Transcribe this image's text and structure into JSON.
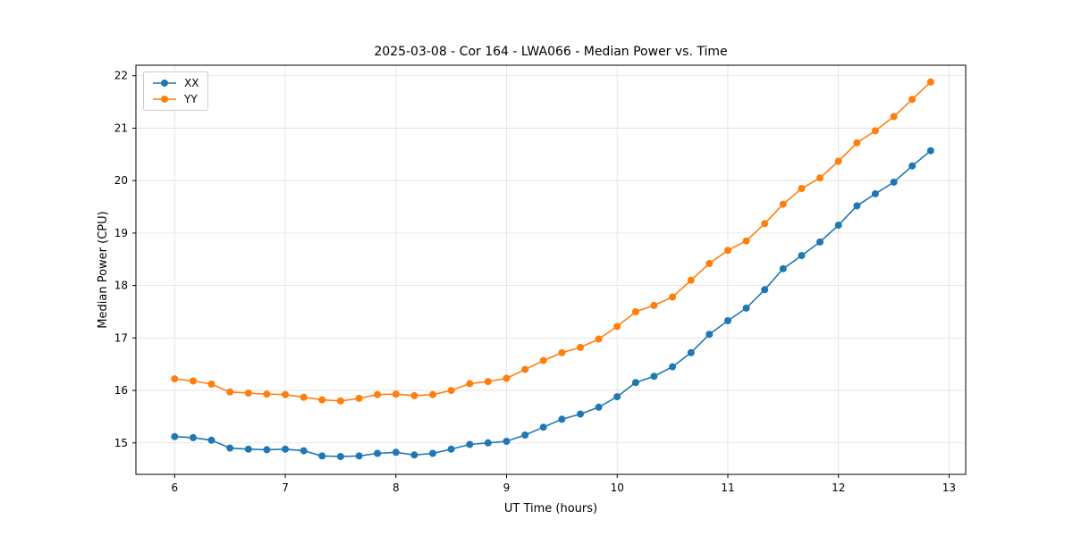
{
  "chart_data": {
    "type": "line",
    "title": "2025-03-08 - Cor 164 - LWA066 - Median Power vs. Time",
    "xlabel": "UT Time (hours)",
    "ylabel": "Median Power (CPU)",
    "xlim": [
      5.65,
      13.15
    ],
    "ylim": [
      14.4,
      22.2
    ],
    "xticks": [
      6,
      7,
      8,
      9,
      10,
      11,
      12,
      13
    ],
    "yticks": [
      15,
      16,
      17,
      18,
      19,
      20,
      21,
      22
    ],
    "grid": true,
    "legend_position": "upper-left",
    "marker": "circle",
    "x": [
      6.0,
      6.167,
      6.333,
      6.5,
      6.667,
      6.833,
      7.0,
      7.167,
      7.333,
      7.5,
      7.667,
      7.833,
      8.0,
      8.167,
      8.333,
      8.5,
      8.667,
      8.833,
      9.0,
      9.167,
      9.333,
      9.5,
      9.667,
      9.833,
      10.0,
      10.167,
      10.333,
      10.5,
      10.667,
      10.833,
      11.0,
      11.167,
      11.333,
      11.5,
      11.667,
      11.833,
      12.0,
      12.167,
      12.333,
      12.5,
      12.667,
      12.833
    ],
    "series": [
      {
        "name": "XX",
        "color": "#1f77b4",
        "values": [
          15.12,
          15.1,
          15.05,
          14.9,
          14.88,
          14.87,
          14.88,
          14.85,
          14.75,
          14.74,
          14.75,
          14.8,
          14.82,
          14.77,
          14.8,
          14.88,
          14.97,
          15.0,
          15.03,
          15.15,
          15.3,
          15.45,
          15.55,
          15.68,
          15.88,
          16.15,
          16.27,
          16.45,
          16.72,
          17.07,
          17.33,
          17.57,
          17.92,
          18.32,
          18.57,
          18.83,
          19.15,
          19.52,
          19.75,
          19.97,
          20.28,
          20.57
        ]
      },
      {
        "name": "YY",
        "color": "#ff7f0e",
        "values": [
          16.22,
          16.18,
          16.12,
          15.97,
          15.95,
          15.93,
          15.92,
          15.87,
          15.82,
          15.8,
          15.85,
          15.92,
          15.93,
          15.9,
          15.92,
          16.0,
          16.13,
          16.17,
          16.23,
          16.4,
          16.57,
          16.72,
          16.82,
          16.98,
          17.22,
          17.5,
          17.62,
          17.78,
          18.1,
          18.42,
          18.67,
          18.85,
          19.18,
          19.55,
          19.85,
          20.05,
          20.37,
          20.72,
          20.95,
          21.22,
          21.55,
          21.88
        ]
      }
    ],
    "styles": {
      "grid_color": "#e0e0e0",
      "axis_color": "#000000",
      "tick_label_size": 12
    }
  }
}
